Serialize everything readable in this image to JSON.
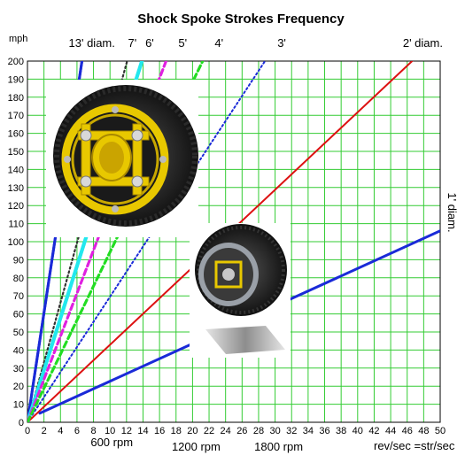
{
  "chart_data": {
    "type": "line",
    "title": "Shock Spoke Strokes Frequency",
    "ylabel": "mph",
    "xlabel": "rev/sec =str/sec",
    "xlim": [
      0,
      50
    ],
    "ylim": [
      0,
      200
    ],
    "x_ticks": [
      0,
      2,
      4,
      6,
      8,
      10,
      12,
      14,
      16,
      18,
      20,
      22,
      24,
      26,
      28,
      30,
      32,
      34,
      36,
      38,
      40,
      42,
      44,
      46,
      48,
      50
    ],
    "y_ticks": [
      0,
      10,
      20,
      30,
      40,
      50,
      60,
      70,
      80,
      90,
      100,
      110,
      120,
      130,
      140,
      150,
      160,
      170,
      180,
      190,
      200
    ],
    "grid": true,
    "rpm_labels": [
      {
        "text": "600 rpm",
        "x": 10
      },
      {
        "text": "1200 rpm",
        "x": 20
      },
      {
        "text": "1800 rpm",
        "x": 30
      }
    ],
    "right_label": "1' diam.",
    "series": [
      {
        "name": "13' diam.",
        "color": "#1a2ad8",
        "style": "solid",
        "width": 3,
        "x": [
          0,
          7
        ],
        "y": [
          0,
          212
        ]
      },
      {
        "name": "7'",
        "color": "#333333",
        "style": "dotted",
        "width": 2,
        "x": [
          0,
          12.8
        ],
        "y": [
          0,
          212
        ]
      },
      {
        "name": "6'",
        "color": "#22e8ee",
        "style": "solid",
        "width": 4,
        "x": [
          0,
          14.7
        ],
        "y": [
          0,
          212
        ]
      },
      {
        "name": "5'",
        "color": "#e020e0",
        "style": "dashed",
        "width": 3,
        "x": [
          0,
          17.8
        ],
        "y": [
          0,
          212
        ]
      },
      {
        "name": "4'",
        "color": "#22dd22",
        "style": "dashed",
        "width": 3,
        "x": [
          0,
          22.5
        ],
        "y": [
          0,
          212
        ]
      },
      {
        "name": "3'",
        "color": "#1a2ad8",
        "style": "dotted",
        "width": 2,
        "x": [
          0,
          30.5
        ],
        "y": [
          0,
          212
        ]
      },
      {
        "name": "2' diam.",
        "color": "#dd1111",
        "style": "solid",
        "width": 2,
        "x": [
          0,
          46.6
        ],
        "y": [
          0,
          200
        ]
      },
      {
        "name": "1' diam.",
        "color": "#1a2ad8",
        "style": "solid",
        "width": 3,
        "x": [
          1.5,
          50
        ],
        "y": [
          5,
          106
        ]
      }
    ],
    "top_labels": [
      {
        "text": "13' diam.",
        "x": 7.8
      },
      {
        "text": "7'",
        "x": 12.7
      },
      {
        "text": "6'",
        "x": 14.8
      },
      {
        "text": "5'",
        "x": 18.8
      },
      {
        "text": "4'",
        "x": 23.2
      },
      {
        "text": "3'",
        "x": 30.8
      },
      {
        "text": "2' diam.",
        "x": 47.9
      }
    ]
  }
}
